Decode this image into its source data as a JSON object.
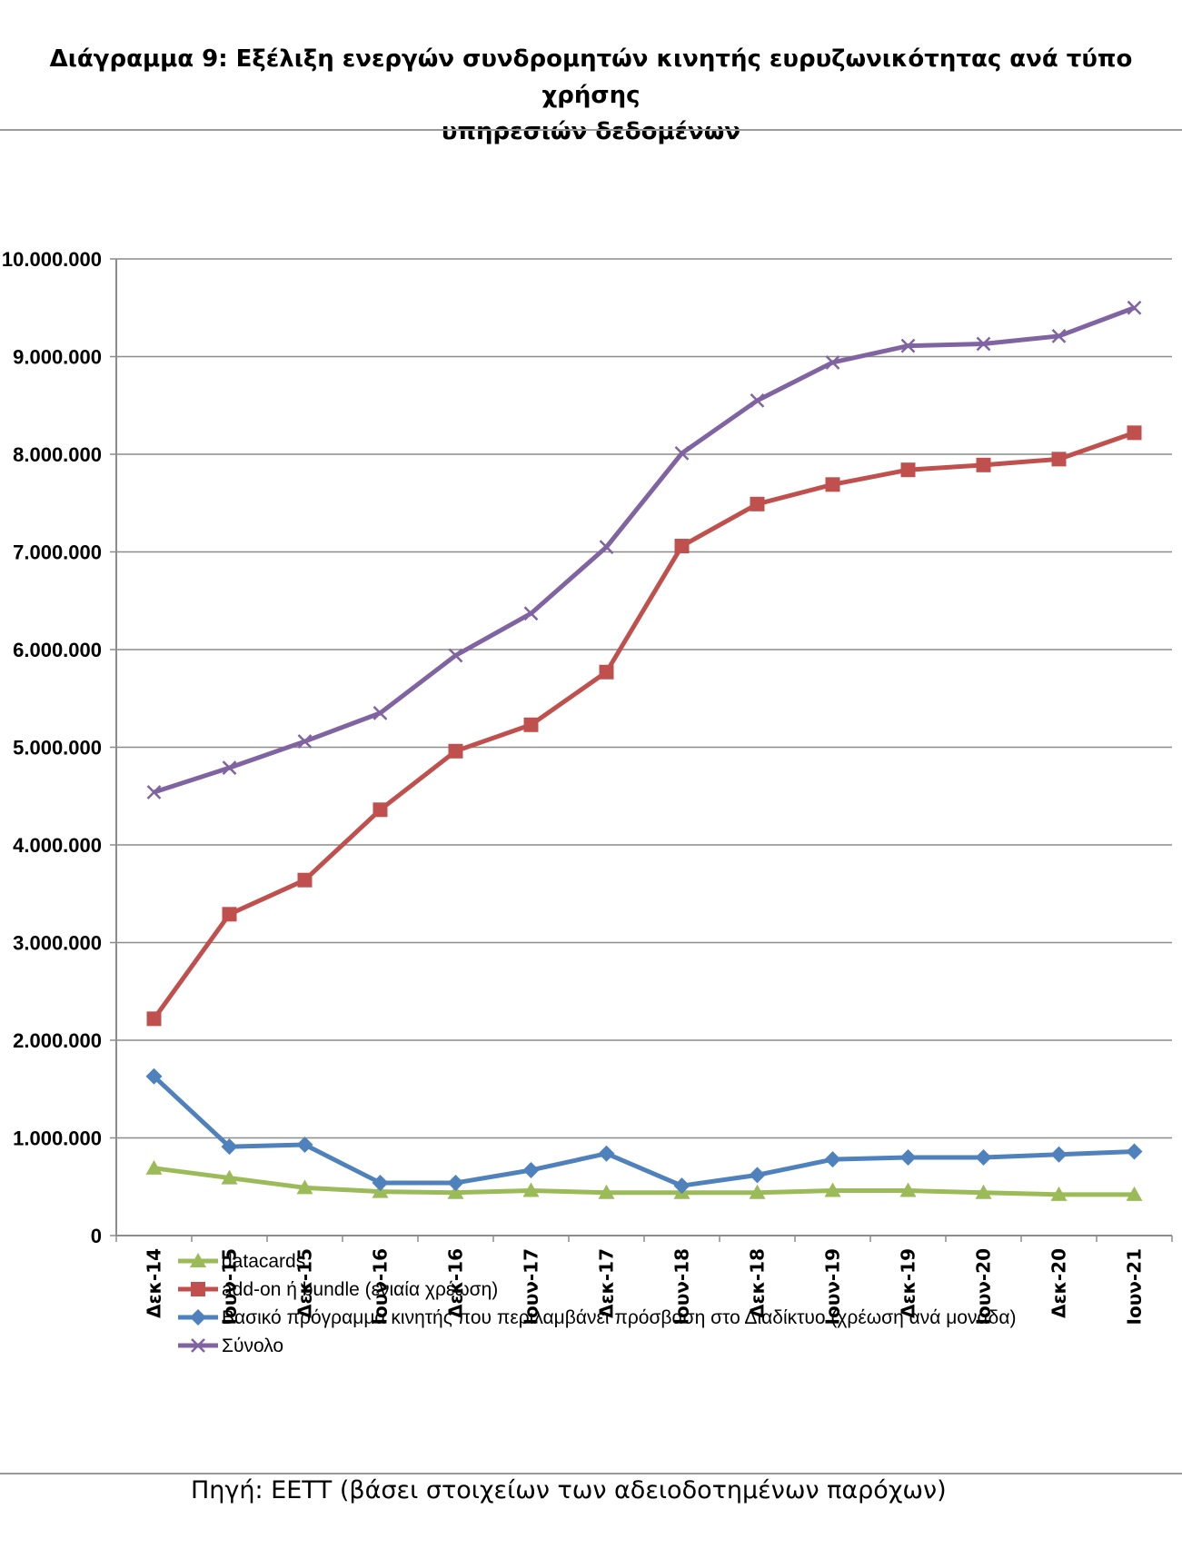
{
  "title_line1": "Διάγραμμα 9: Εξέλιξη ενεργών συνδρομητών κινητής ευρυζωνικότητας  ανά τύπο χρήσης",
  "title_line2": "υπηρεσιών δεδομένων",
  "source": "Πηγή: ΕΕΤΤ (βάσει στοιχείων των αδειοδοτημένων παρόχων)",
  "chart_data": {
    "type": "line",
    "title": "",
    "xlabel": "",
    "ylabel": "",
    "ylim": [
      0,
      10000000
    ],
    "yticks": [
      0,
      1000000,
      2000000,
      3000000,
      4000000,
      5000000,
      6000000,
      7000000,
      8000000,
      9000000,
      10000000
    ],
    "ytick_labels": [
      "0",
      "1.000.000",
      "2.000.000",
      "3.000.000",
      "4.000.000",
      "5.000.000",
      "6.000.000",
      "7.000.000",
      "8.000.000",
      "9.000.000",
      "10.000.000"
    ],
    "grid": true,
    "legend_position": "bottom-left",
    "categories": [
      "Δεκ-14",
      "Ιουν-15",
      "Δεκ-15",
      "Ιουν-16",
      "Δεκ-16",
      "Ιουν-17",
      "Δεκ-17",
      "Ιουν-18",
      "Δεκ-18",
      "Ιουν-19",
      "Δεκ-19",
      "Ιουν-20",
      "Δεκ-20",
      "Ιουν-21"
    ],
    "series": [
      {
        "name": "datacards",
        "color": "#9BBB59",
        "marker": "triangle",
        "values": [
          690000,
          590000,
          490000,
          450000,
          440000,
          460000,
          440000,
          440000,
          440000,
          460000,
          460000,
          440000,
          420000,
          420000
        ]
      },
      {
        "name": "add-on ή bundle (ενιαία χρέωση)",
        "color": "#C0504D",
        "marker": "square",
        "values": [
          2220000,
          3290000,
          3640000,
          4360000,
          4960000,
          5230000,
          5770000,
          7060000,
          7490000,
          7690000,
          7840000,
          7890000,
          7950000,
          8220000
        ]
      },
      {
        "name": "Βασικό πρόγραμμα κινητής  που περιλαμβάνει πρόσβαση στο Διαδίκτυο (χρέωση ανά μονάδα)",
        "color": "#4F81BD",
        "marker": "diamond",
        "values": [
          1630000,
          910000,
          930000,
          540000,
          540000,
          670000,
          840000,
          510000,
          620000,
          780000,
          800000,
          800000,
          830000,
          860000
        ]
      },
      {
        "name": "Σύνολο",
        "color": "#8064A2",
        "marker": "x",
        "values": [
          4540000,
          4790000,
          5060000,
          5350000,
          5940000,
          6370000,
          7050000,
          8010000,
          8550000,
          8940000,
          9110000,
          9130000,
          9210000,
          9500000
        ]
      }
    ]
  }
}
